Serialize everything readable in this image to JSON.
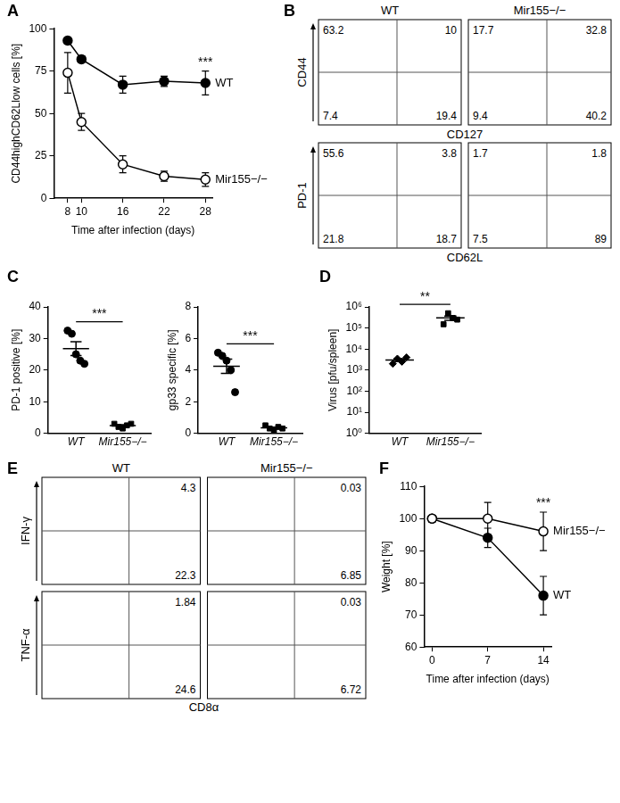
{
  "chart_data": [
    {
      "panel": "A",
      "type": "line",
      "x_label": "Time after infection (days)",
      "y_label": "CD44highCD62Llow cells [%]",
      "x": [
        8,
        10,
        16,
        22,
        28
      ],
      "xlim": [
        6,
        29
      ],
      "xticks": [
        8,
        10,
        16,
        22,
        28
      ],
      "ylim": [
        0,
        100
      ],
      "yticks": [
        0,
        25,
        50,
        75,
        100
      ],
      "grid": false,
      "annotation": "***",
      "series": [
        {
          "name": "WT",
          "color": "#000000",
          "marker": "circle",
          "values": [
            93,
            82,
            67,
            69,
            68
          ],
          "error": [
            2,
            2,
            5,
            3,
            7
          ]
        },
        {
          "name": "Mir155−/−",
          "color": "#000000",
          "marker": "open_circle",
          "values": [
            74,
            45,
            20,
            13,
            11
          ],
          "error": [
            12,
            5,
            5,
            3,
            4
          ]
        }
      ]
    },
    {
      "panel": "B",
      "type": "quadrant",
      "columns": [
        "WT",
        "Mir155−/−"
      ],
      "rows": [
        {
          "x_label": "CD127",
          "y_label": "CD44",
          "quadrants": [
            [
              63.2,
              10,
              7.4,
              19.4
            ],
            [
              17.7,
              32.8,
              9.4,
              40.2
            ]
          ]
        },
        {
          "x_label": "CD62L",
          "y_label": "PD-1",
          "quadrants": [
            [
              55.6,
              3.8,
              21.8,
              18.7
            ],
            [
              1.7,
              1.8,
              7.5,
              89
            ]
          ]
        }
      ]
    },
    {
      "panel": "C",
      "type": "scatter",
      "y_label": "PD-1 positive [%]",
      "ylim": [
        0,
        40
      ],
      "yticks": [
        0,
        10,
        20,
        30,
        40
      ],
      "grid": false,
      "annotation": "***",
      "series": [
        {
          "name": "WT",
          "color": "#000000",
          "marker": "circle",
          "values": [
            32.5,
            31.5,
            25,
            23,
            22
          ],
          "mean": 26.8,
          "error": 2.2
        },
        {
          "name": "Mir155−/−",
          "color": "#000000",
          "marker": "square",
          "values": [
            3,
            2,
            1.5,
            2.5,
            3
          ],
          "mean": 2.4,
          "error": 0.3
        }
      ]
    },
    {
      "type": "scatter",
      "y_label": "gp33 specific [%]",
      "ylim": [
        0,
        8
      ],
      "yticks": [
        0,
        2,
        4,
        6,
        8
      ],
      "grid": false,
      "annotation": "***",
      "series": [
        {
          "name": "WT",
          "color": "#000000",
          "marker": "circle",
          "values": [
            5.1,
            4.9,
            4.6,
            4.0,
            2.6
          ],
          "mean": 4.24,
          "error": 0.45
        },
        {
          "name": "Mir155−/−",
          "color": "#000000",
          "marker": "square",
          "values": [
            0.5,
            0.3,
            0.2,
            0.4,
            0.3
          ],
          "mean": 0.34,
          "error": 0.05
        }
      ]
    },
    {
      "panel": "D",
      "type": "scatter",
      "y_label": "Virus [pfu/spleen]",
      "log": "y",
      "ylim": [
        1,
        1000000
      ],
      "yticks": [
        {
          "value": 1,
          "label": "10⁰"
        },
        {
          "value": 10,
          "label": "10¹"
        },
        {
          "value": 100,
          "label": "10²"
        },
        {
          "value": 1000,
          "label": "10³"
        },
        {
          "value": 10000,
          "label": "10⁴"
        },
        {
          "value": 100000,
          "label": "10⁵"
        },
        {
          "value": 1000000,
          "label": "10⁶"
        }
      ],
      "grid": false,
      "annotation": "**",
      "series": [
        {
          "name": "WT",
          "color": "#000000",
          "marker": "diamond",
          "values": [
            2000,
            3500,
            2500,
            4000
          ],
          "mean": 3000,
          "error": 450
        },
        {
          "name": "Mir155−/−",
          "color": "#000000",
          "marker": "square",
          "values": [
            150000,
            500000,
            300000,
            250000
          ],
          "mean": 300000,
          "error": 70000
        }
      ]
    },
    {
      "panel": "E",
      "type": "quadrant",
      "columns": [
        "WT",
        "Mir155−/−"
      ],
      "x_label": "CD8α",
      "rows": [
        {
          "y_label": "IFN-γ",
          "quadrants": [
            [
              null,
              4.3,
              null,
              22.3
            ],
            [
              null,
              0.03,
              null,
              6.85
            ]
          ]
        },
        {
          "y_label": "TNF-α",
          "quadrants": [
            [
              null,
              1.84,
              null,
              24.6
            ],
            [
              null,
              0.03,
              null,
              6.72
            ]
          ]
        }
      ]
    },
    {
      "panel": "F",
      "type": "line",
      "x_label": "Time after infection (days)",
      "y_label": "Weight [%]",
      "x": [
        0,
        7,
        14
      ],
      "xlim": [
        -1,
        15
      ],
      "xticks": [
        0,
        7,
        14
      ],
      "ylim": [
        60,
        110
      ],
      "yticks": [
        60,
        70,
        80,
        90,
        100,
        110
      ],
      "grid": false,
      "annotation": "***",
      "series": [
        {
          "name": "Mir155−/−",
          "color": "#000000",
          "marker": "open_circle",
          "values": [
            100,
            100,
            96
          ],
          "error": [
            1,
            5,
            6
          ]
        },
        {
          "name": "WT",
          "color": "#000000",
          "marker": "circle",
          "values": [
            100,
            94,
            76
          ],
          "error": [
            1,
            3,
            6
          ]
        }
      ]
    }
  ]
}
